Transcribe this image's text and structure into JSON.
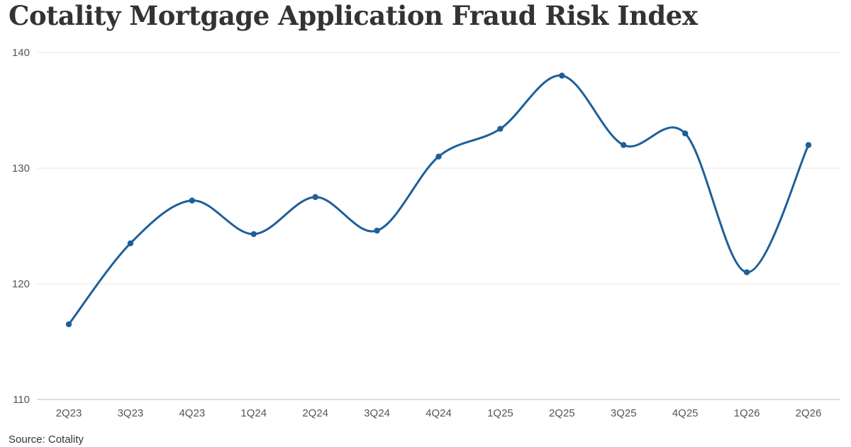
{
  "chart_data": {
    "type": "line",
    "title": "Cotality Mortgage Application Fraud Risk Index",
    "source": "Source: Cotality",
    "categories": [
      "2Q23",
      "3Q23",
      "4Q23",
      "1Q24",
      "2Q24",
      "3Q24",
      "4Q24",
      "1Q25",
      "2Q25",
      "3Q25",
      "4Q25",
      "1Q26",
      "2Q26"
    ],
    "series": [
      {
        "values": [
          116.5,
          123.5,
          127.2,
          124.3,
          127.5,
          124.6,
          131.0,
          133.4,
          138.0,
          132.0,
          133.0,
          121.0,
          132.0
        ]
      }
    ],
    "ylim": [
      110,
      140
    ],
    "yticks": [
      110,
      120,
      130,
      140
    ],
    "xlabel": "",
    "ylabel": "",
    "grid": true,
    "colors": {
      "line": "#1f5f99",
      "grid": "#e6e6e6",
      "axis": "#bbbbbb"
    }
  }
}
